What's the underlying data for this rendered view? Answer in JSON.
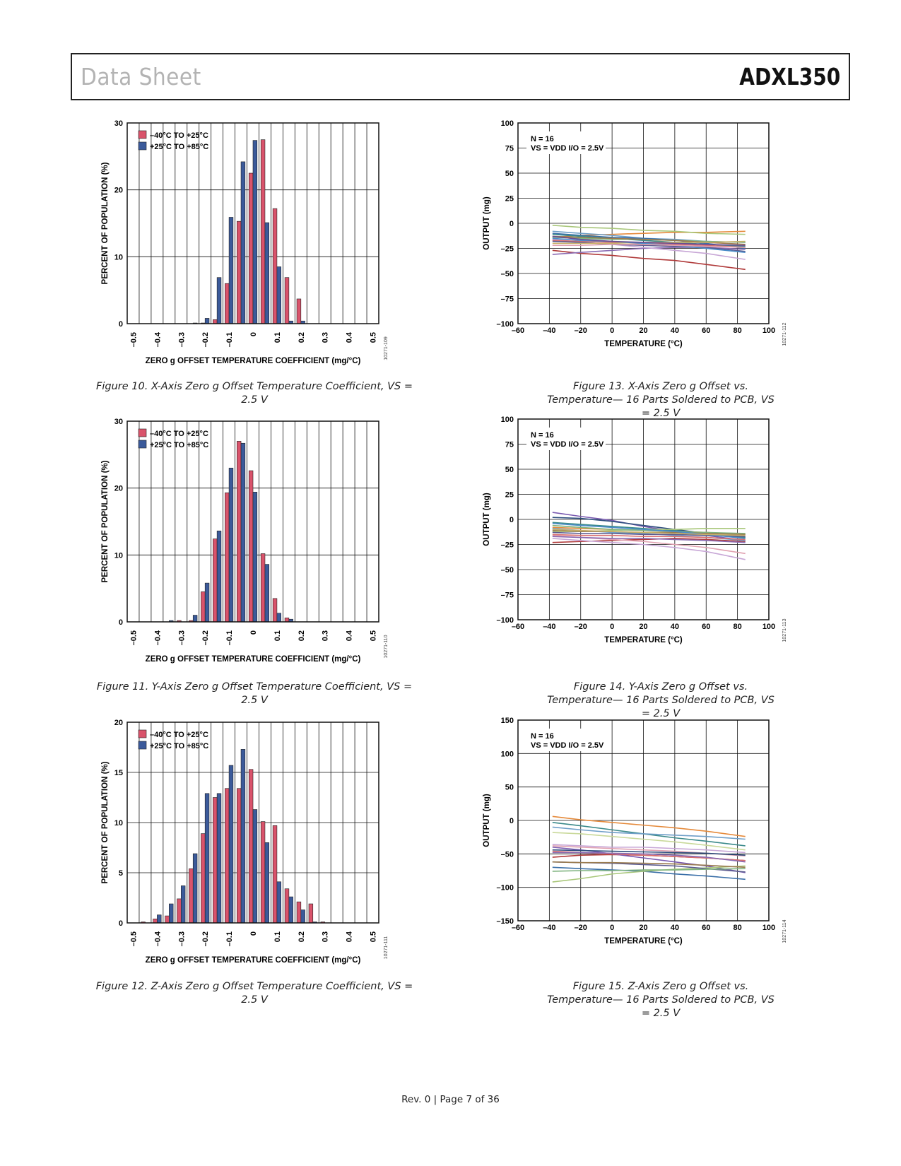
{
  "header": {
    "left": "Data Sheet",
    "right": "ADXL350"
  },
  "footer": "Rev. 0 | Page 7 of 36",
  "colors": {
    "series_a": "#d9536b",
    "series_b": "#3b5a9a",
    "grid": "#111111"
  },
  "captions": {
    "fig10": "Figure 10. X-Axis Zero g Offset Temperature Coefficient, VS = 2.5 V",
    "fig11": "Figure 11. Y-Axis Zero g Offset Temperature Coefficient, VS = 2.5 V",
    "fig12": "Figure 12. Z-Axis Zero g Offset Temperature Coefficient, VS = 2.5 V",
    "fig13": "Figure 13. X-Axis Zero g Offset vs. Temperature— 16 Parts Soldered to PCB, VS = 2.5 V",
    "fig14": "Figure 14. Y-Axis Zero g Offset vs. Temperature— 16 Parts Soldered to PCB, VS = 2.5 V",
    "fig15": "Figure 15. Z-Axis Zero g Offset vs. Temperature— 16 Parts Soldered to PCB, VS = 2.5 V"
  },
  "chart_data": [
    {
      "id": "fig10",
      "type": "bar",
      "xlabel": "ZERO g OFFSET TEMPERATURE COEFFICIENT (mg/°C)",
      "ylabel": "PERCENT OF POPULATION (%)",
      "code": "10271-109",
      "ylim": [
        0,
        30
      ],
      "yticks": [
        0,
        10,
        20,
        30
      ],
      "categories": [
        -0.5,
        -0.45,
        -0.4,
        -0.35,
        -0.3,
        -0.25,
        -0.2,
        -0.15,
        -0.1,
        -0.05,
        0,
        0.05,
        0.1,
        0.15,
        0.2,
        0.25,
        0.3,
        0.35,
        0.4,
        0.45,
        0.5
      ],
      "xtick_labels": [
        "–0.5",
        "–0.4",
        "–0.3",
        "–0.2",
        "–0.1",
        "0",
        "0.1",
        "0.2",
        "0.3",
        "0.4",
        "0.5"
      ],
      "series": [
        {
          "name": "–40°C TO +25°C",
          "values": [
            0,
            0,
            0,
            0,
            0,
            0,
            0.1,
            0.6,
            6,
            15.3,
            22.5,
            27.5,
            17.2,
            6.9,
            3.7,
            0,
            0,
            0,
            0,
            0,
            0
          ]
        },
        {
          "name": "+25°C TO +85°C",
          "values": [
            0,
            0,
            0,
            0,
            0,
            0.1,
            0.8,
            6.9,
            15.9,
            24.2,
            27.4,
            15.1,
            8.5,
            0.4,
            0.4,
            0,
            0,
            0,
            0,
            0,
            0
          ]
        }
      ],
      "legend": "top-left",
      "grid": true
    },
    {
      "id": "fig11",
      "type": "bar",
      "xlabel": "ZERO g OFFSET TEMPERATURE COEFFICIENT (mg/°C)",
      "ylabel": "PERCENT OF POPULATION (%)",
      "code": "10271-110",
      "ylim": [
        0,
        30
      ],
      "yticks": [
        0,
        10,
        20,
        30
      ],
      "categories": [
        -0.5,
        -0.45,
        -0.4,
        -0.35,
        -0.3,
        -0.25,
        -0.2,
        -0.15,
        -0.1,
        -0.05,
        0,
        0.05,
        0.1,
        0.15,
        0.2,
        0.25,
        0.3,
        0.35,
        0.4,
        0.45,
        0.5
      ],
      "xtick_labels": [
        "–0.5",
        "–0.4",
        "–0.3",
        "–0.2",
        "–0.1",
        "0",
        "0.1",
        "0.2",
        "0.3",
        "0.4",
        "0.5"
      ],
      "series": [
        {
          "name": "–40°C TO +25°C",
          "values": [
            0,
            0,
            0,
            0,
            0.2,
            0.2,
            4.5,
            12.4,
            19.3,
            27,
            22.6,
            10.2,
            3.5,
            0.6,
            0,
            0,
            0,
            0,
            0,
            0,
            0
          ]
        },
        {
          "name": "+25°C TO +85°C",
          "values": [
            0,
            0,
            0,
            0.2,
            0,
            1,
            5.8,
            13.6,
            23,
            26.7,
            19.4,
            8.6,
            1.3,
            0.4,
            0,
            0,
            0,
            0,
            0,
            0,
            0
          ]
        }
      ],
      "legend": "top-left",
      "grid": true
    },
    {
      "id": "fig12",
      "type": "bar",
      "xlabel": "ZERO g OFFSET TEMPERATURE COEFFICIENT (mg/°C)",
      "ylabel": "PERCENT OF POPULATION (%)",
      "code": "10271-111",
      "ylim": [
        0,
        20
      ],
      "yticks": [
        0,
        5,
        10,
        15,
        20
      ],
      "categories": [
        -0.5,
        -0.45,
        -0.4,
        -0.35,
        -0.3,
        -0.25,
        -0.2,
        -0.15,
        -0.1,
        -0.05,
        0,
        0.05,
        0.1,
        0.15,
        0.2,
        0.25,
        0.3,
        0.35,
        0.4,
        0.45,
        0.5
      ],
      "xtick_labels": [
        "–0.5",
        "–0.4",
        "–0.3",
        "–0.2",
        "–0.1",
        "0",
        "0.1",
        "0.2",
        "0.3",
        "0.4",
        "0.5"
      ],
      "series": [
        {
          "name": "–40°C TO +25°C",
          "values": [
            0,
            0.1,
            0.4,
            0.7,
            2.4,
            5.4,
            8.9,
            12.5,
            13.4,
            13.4,
            15.3,
            10.1,
            9.7,
            3.4,
            2.1,
            1.9,
            0.1,
            0,
            0,
            0,
            0
          ]
        },
        {
          "name": "+25°C TO +85°C",
          "values": [
            0,
            0,
            0.8,
            1.9,
            3.7,
            6.9,
            12.9,
            12.9,
            15.7,
            17.3,
            11.3,
            8,
            4.1,
            2.6,
            1.3,
            0.1,
            0,
            0,
            0,
            0,
            0
          ]
        }
      ],
      "legend": "top-left",
      "grid": true
    },
    {
      "id": "fig13",
      "type": "line",
      "xlabel": "TEMPERATURE (°C)",
      "ylabel": "OUTPUT (mg)",
      "code": "10271-112",
      "annotation": [
        "N = 16",
        "VS = VDD I/O = 2.5V"
      ],
      "xlim": [
        -60,
        100
      ],
      "ylim": [
        -100,
        100
      ],
      "xticks": [
        -60,
        -40,
        -20,
        0,
        20,
        40,
        60,
        80,
        100
      ],
      "yticks": [
        -100,
        -75,
        -50,
        -25,
        0,
        25,
        50,
        75,
        100
      ],
      "x": [
        -38,
        -20,
        0,
        20,
        40,
        60,
        85
      ],
      "series": [
        {
          "color": "#b03a3a",
          "values": [
            -27,
            -30,
            -32,
            -35,
            -37,
            -41,
            -46
          ]
        },
        {
          "color": "#e58a3b",
          "values": [
            -14,
            -12,
            -11,
            -10,
            -9,
            -9,
            -8
          ]
        },
        {
          "color": "#a9c77a",
          "values": [
            -2,
            -4,
            -5,
            -7,
            -8,
            -10,
            -11
          ]
        },
        {
          "color": "#6f9fc8",
          "values": [
            -8,
            -10,
            -12,
            -15,
            -16,
            -18,
            -19
          ]
        },
        {
          "color": "#3a6fa8",
          "values": [
            -10,
            -12,
            -14,
            -15,
            -17,
            -20,
            -25
          ]
        },
        {
          "color": "#8a6bb3",
          "values": [
            -31,
            -29,
            -27,
            -25,
            -24,
            -24,
            -26
          ]
        },
        {
          "color": "#c7a6d6",
          "values": [
            -16,
            -19,
            -21,
            -24,
            -27,
            -30,
            -36
          ]
        },
        {
          "color": "#3b8a8a",
          "values": [
            -11,
            -13,
            -15,
            -17,
            -19,
            -21,
            -23
          ]
        },
        {
          "color": "#d96f6f",
          "values": [
            -17,
            -18,
            -19,
            -20,
            -21,
            -22,
            -24
          ]
        },
        {
          "color": "#7fb37f",
          "values": [
            -14,
            -15,
            -16,
            -16,
            -17,
            -18,
            -19
          ]
        },
        {
          "color": "#5a5a8f",
          "values": [
            -18,
            -19,
            -21,
            -22,
            -23,
            -24,
            -28
          ]
        },
        {
          "color": "#9a7b4f",
          "values": [
            -13,
            -14,
            -15,
            -16,
            -17,
            -19,
            -21
          ]
        },
        {
          "color": "#c9b26a",
          "values": [
            -20,
            -20,
            -20,
            -19,
            -19,
            -19,
            -18
          ]
        },
        {
          "color": "#4a8cc9",
          "values": [
            -15,
            -17,
            -18,
            -20,
            -22,
            -25,
            -29
          ]
        },
        {
          "color": "#e0a0b0",
          "values": [
            -22,
            -22,
            -21,
            -21,
            -22,
            -23,
            -24
          ]
        },
        {
          "color": "#6a4c93",
          "values": [
            -13,
            -16,
            -18,
            -19,
            -20,
            -21,
            -22
          ]
        }
      ],
      "grid": true
    },
    {
      "id": "fig14",
      "type": "line",
      "xlabel": "TEMPERATURE (°C)",
      "ylabel": "OUTPUT (mg)",
      "code": "10271-113",
      "annotation": [
        "N = 16",
        "VS = VDD I/O = 2.5V"
      ],
      "xlim": [
        -60,
        100
      ],
      "ylim": [
        -100,
        100
      ],
      "xticks": [
        -60,
        -40,
        -20,
        0,
        20,
        40,
        60,
        80,
        100
      ],
      "yticks": [
        -100,
        -75,
        -50,
        -25,
        0,
        25,
        50,
        75,
        100
      ],
      "x": [
        -38,
        -20,
        0,
        20,
        40,
        60,
        85
      ],
      "series": [
        {
          "color": "#7a5ab0",
          "values": [
            7,
            3,
            -1,
            -7,
            -12,
            -16,
            -21
          ]
        },
        {
          "color": "#2f4f7f",
          "values": [
            2,
            1,
            -2,
            -6,
            -10,
            -14,
            -18
          ]
        },
        {
          "color": "#3b8a8a",
          "values": [
            -3,
            -5,
            -7,
            -9,
            -11,
            -14,
            -18
          ]
        },
        {
          "color": "#b03a3a",
          "values": [
            -23,
            -22,
            -21,
            -20,
            -19,
            -20,
            -22
          ]
        },
        {
          "color": "#e58a3b",
          "values": [
            -8,
            -9,
            -10,
            -11,
            -12,
            -13,
            -15
          ]
        },
        {
          "color": "#a9c77a",
          "values": [
            -12,
            -12,
            -11,
            -10,
            -10,
            -9,
            -9
          ]
        },
        {
          "color": "#c7a6d6",
          "values": [
            -19,
            -21,
            -23,
            -25,
            -28,
            -32,
            -40
          ]
        },
        {
          "color": "#e0a0b0",
          "values": [
            -16,
            -18,
            -20,
            -22,
            -25,
            -28,
            -34
          ]
        },
        {
          "color": "#6f9fc8",
          "values": [
            -9,
            -11,
            -13,
            -14,
            -16,
            -18,
            -21
          ]
        },
        {
          "color": "#d96f6f",
          "values": [
            -15,
            -16,
            -16,
            -17,
            -17,
            -18,
            -20
          ]
        },
        {
          "color": "#5a5a8f",
          "values": [
            -13,
            -14,
            -14,
            -15,
            -15,
            -16,
            -17
          ]
        },
        {
          "color": "#7fb37f",
          "values": [
            -6,
            -8,
            -10,
            -11,
            -12,
            -13,
            -14
          ]
        },
        {
          "color": "#9a7b4f",
          "values": [
            -11,
            -12,
            -12,
            -13,
            -13,
            -14,
            -15
          ]
        },
        {
          "color": "#4a8cc9",
          "values": [
            -4,
            -6,
            -8,
            -10,
            -12,
            -15,
            -19
          ]
        },
        {
          "color": "#c9b26a",
          "values": [
            -10,
            -11,
            -12,
            -13,
            -14,
            -15,
            -16
          ]
        },
        {
          "color": "#8a6bb3",
          "values": [
            -17,
            -18,
            -19,
            -19,
            -20,
            -21,
            -23
          ]
        }
      ],
      "grid": true
    },
    {
      "id": "fig15",
      "type": "line",
      "xlabel": "TEMPERATURE (°C)",
      "ylabel": "OUTPUT (mg)",
      "code": "10271-114",
      "annotation": [
        "N = 16",
        "VS = VDD I/O = 2.5V"
      ],
      "xlim": [
        -60,
        100
      ],
      "ylim": [
        -150,
        150
      ],
      "xticks": [
        -60,
        -40,
        -20,
        0,
        20,
        40,
        60,
        80,
        100
      ],
      "yticks": [
        -150,
        -100,
        -50,
        0,
        50,
        100,
        150
      ],
      "x": [
        -38,
        -20,
        0,
        20,
        40,
        60,
        85
      ],
      "series": [
        {
          "color": "#e58a3b",
          "values": [
            6,
            1,
            -3,
            -7,
            -11,
            -16,
            -24
          ]
        },
        {
          "color": "#3b8a8a",
          "values": [
            -3,
            -8,
            -14,
            -20,
            -26,
            -31,
            -38
          ]
        },
        {
          "color": "#c9d99a",
          "values": [
            -18,
            -20,
            -24,
            -28,
            -32,
            -37,
            -44
          ]
        },
        {
          "color": "#6f9fc8",
          "values": [
            -10,
            -14,
            -18,
            -20,
            -22,
            -24,
            -28
          ]
        },
        {
          "color": "#c7a6d6",
          "values": [
            -36,
            -38,
            -40,
            -40,
            -42,
            -44,
            -48
          ]
        },
        {
          "color": "#b03a3a",
          "values": [
            -55,
            -52,
            -51,
            -52,
            -54,
            -56,
            -60
          ]
        },
        {
          "color": "#e0a0b0",
          "values": [
            -38,
            -40,
            -42,
            -44,
            -46,
            -49,
            -53
          ]
        },
        {
          "color": "#7a5ab0",
          "values": [
            -40,
            -44,
            -50,
            -56,
            -62,
            -68,
            -78
          ]
        },
        {
          "color": "#3a6fa8",
          "values": [
            -70,
            -72,
            -74,
            -76,
            -80,
            -83,
            -88
          ]
        },
        {
          "color": "#a9c77a",
          "values": [
            -92,
            -87,
            -80,
            -76,
            -73,
            -71,
            -68
          ]
        },
        {
          "color": "#5a5a8f",
          "values": [
            -62,
            -63,
            -64,
            -66,
            -68,
            -72,
            -77
          ]
        },
        {
          "color": "#d96f6f",
          "values": [
            -46,
            -48,
            -50,
            -52,
            -54,
            -56,
            -60
          ]
        },
        {
          "color": "#7fb37f",
          "values": [
            -76,
            -75,
            -75,
            -74,
            -74,
            -73,
            -72
          ]
        },
        {
          "color": "#9a7b4f",
          "values": [
            -62,
            -63,
            -63,
            -64,
            -65,
            -67,
            -70
          ]
        },
        {
          "color": "#8a6bb3",
          "values": [
            -48,
            -48,
            -49,
            -50,
            -52,
            -55,
            -62
          ]
        },
        {
          "color": "#2f4f7f",
          "values": [
            -44,
            -45,
            -46,
            -47,
            -48,
            -49,
            -52
          ]
        }
      ],
      "grid": true
    }
  ]
}
